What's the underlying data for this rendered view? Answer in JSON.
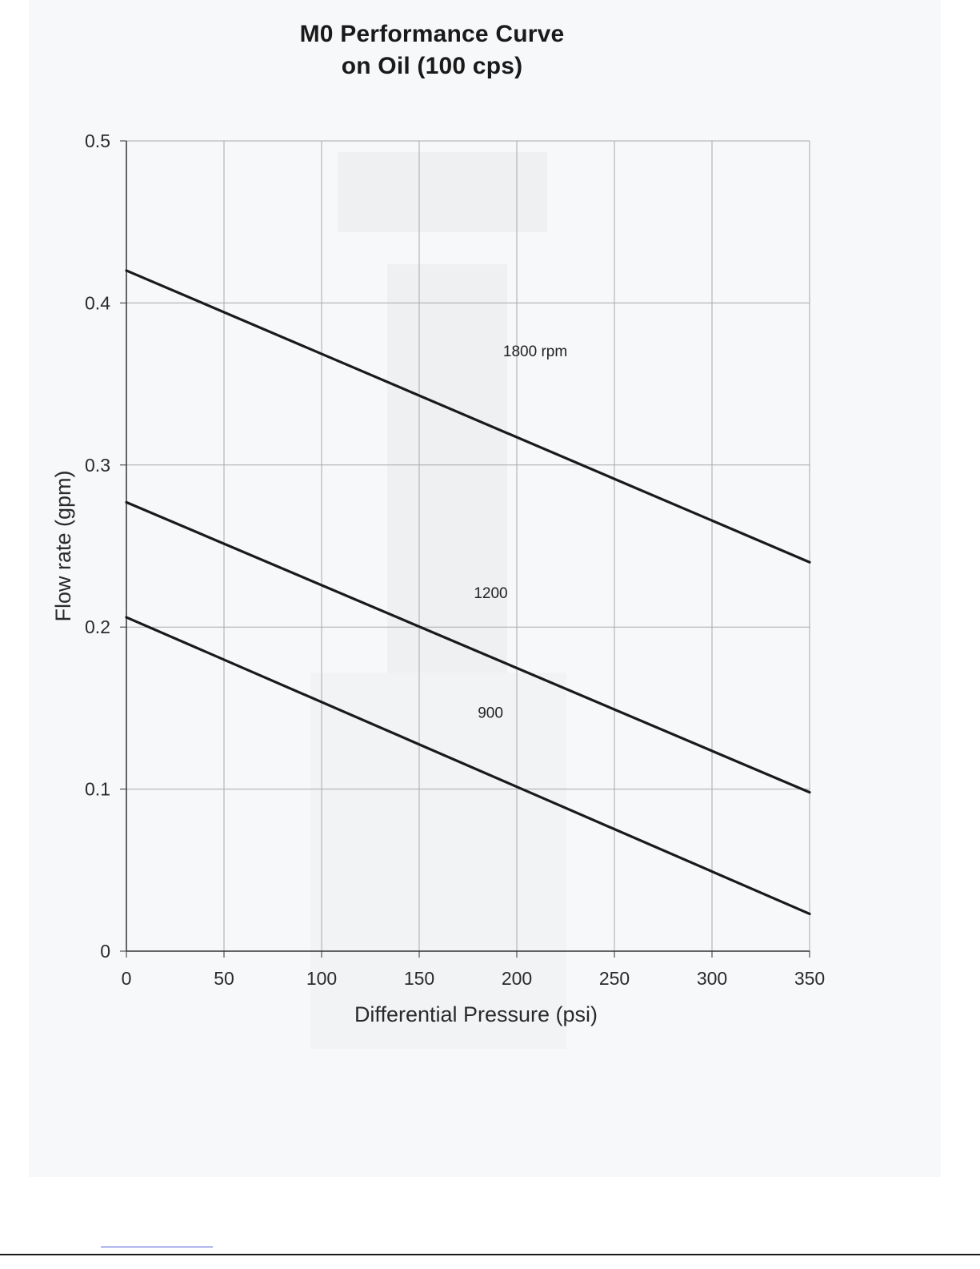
{
  "chart_data": {
    "type": "line",
    "title": "M0 Performance Curve",
    "subtitle": "on Oil (100 cps)",
    "xlabel": "Differential Pressure (psi)",
    "ylabel": "Flow rate (gpm)",
    "xlim": [
      0,
      350
    ],
    "ylim": [
      0,
      0.5
    ],
    "x_ticks": [
      0,
      50,
      100,
      150,
      200,
      250,
      300,
      350
    ],
    "y_ticks": [
      0,
      0.1,
      0.2,
      0.3,
      0.4,
      0.5
    ],
    "x_tick_labels": [
      "0",
      "50",
      "100",
      "150",
      "200",
      "250",
      "300",
      "350"
    ],
    "y_tick_labels": [
      "0",
      "0.1",
      "0.2",
      "0.3",
      "0.4",
      "0.5"
    ],
    "grid": true,
    "series": [
      {
        "label": "1800 rpm",
        "label_at": [
          193,
          0.367
        ],
        "x": [
          0,
          350
        ],
        "y": [
          0.42,
          0.24
        ]
      },
      {
        "label": "1200",
        "label_at": [
          178,
          0.218
        ],
        "x": [
          0,
          350
        ],
        "y": [
          0.277,
          0.098
        ]
      },
      {
        "label": "900",
        "label_at": [
          180,
          0.144
        ],
        "x": [
          0,
          350
        ],
        "y": [
          0.206,
          0.023
        ]
      }
    ],
    "line_color": "#1a1a1a",
    "grid_color": "#a9a9a9"
  }
}
